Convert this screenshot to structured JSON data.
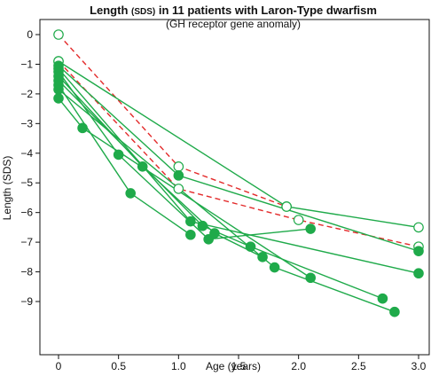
{
  "chart_data": {
    "type": "line",
    "title": {
      "prefix": "Length ",
      "sds": "(SDS)",
      "suffix": " in 11 patients with Laron-Type dwarfism"
    },
    "subtitle": "(GH receptor gene anomaly)",
    "xlabel": "Age (years)",
    "ylabel": "Length (SDS)",
    "xlim": [
      0,
      3.0
    ],
    "ylim": [
      -9.6,
      0.2
    ],
    "x_ticks": [
      {
        "value": 0,
        "label": "0"
      },
      {
        "value": 0.5,
        "label": "0.5"
      },
      {
        "value": 1.0,
        "label": "1.0"
      },
      {
        "value": 1.5,
        "label": "1.5"
      },
      {
        "value": 2.0,
        "label": "2.0"
      },
      {
        "value": 2.5,
        "label": "2.5"
      },
      {
        "value": 3.0,
        "label": "3.0"
      }
    ],
    "y_ticks": [
      {
        "value": 0,
        "label": "0"
      },
      {
        "value": -1,
        "label": "−1"
      },
      {
        "value": -2,
        "label": "−2"
      },
      {
        "value": -3,
        "label": "−3"
      },
      {
        "value": -4,
        "label": "−4"
      },
      {
        "value": -5,
        "label": "−5"
      },
      {
        "value": -6,
        "label": "−6"
      },
      {
        "value": -7,
        "label": "−7"
      },
      {
        "value": -8,
        "label": "−8"
      },
      {
        "value": -9,
        "label": "−9"
      }
    ],
    "grid": false,
    "colors": {
      "solid": "#1faa4a",
      "dashed": "#e32a2a",
      "hollow_fill": "#ffffff"
    },
    "series": [
      {
        "style": "dashed",
        "marker": "hollow",
        "points": [
          [
            0,
            0.0
          ],
          [
            1.0,
            -4.45
          ],
          [
            1.9,
            -5.8
          ]
        ]
      },
      {
        "style": "dashed",
        "marker": "hollow",
        "points": [
          [
            0,
            -0.9
          ],
          [
            1.0,
            -5.2
          ],
          [
            2.0,
            -6.25
          ],
          [
            3.0,
            -7.15
          ]
        ]
      },
      {
        "style": "solid",
        "marker": "hollow",
        "points": [
          [
            0,
            -0.9
          ],
          [
            1.9,
            -5.8
          ],
          [
            3.0,
            -6.5
          ]
        ]
      },
      {
        "style": "solid",
        "marker": "filled",
        "points": [
          [
            0,
            -1.05
          ],
          [
            1.0,
            -4.75
          ],
          [
            3.0,
            -7.3
          ]
        ]
      },
      {
        "style": "solid",
        "marker": "filled",
        "points": [
          [
            0,
            -1.15
          ],
          [
            1.1,
            -6.3
          ],
          [
            3.0,
            -8.05
          ]
        ]
      },
      {
        "style": "solid",
        "marker": "filled",
        "points": [
          [
            0,
            -1.25
          ],
          [
            0.5,
            -4.05
          ],
          [
            1.25,
            -6.9
          ],
          [
            2.1,
            -6.55
          ]
        ]
      },
      {
        "style": "solid",
        "marker": "filled",
        "points": [
          [
            0,
            -1.4
          ],
          [
            0.7,
            -4.45
          ],
          [
            1.3,
            -6.7
          ],
          [
            1.7,
            -7.5
          ]
        ]
      },
      {
        "style": "solid",
        "marker": "filled",
        "points": [
          [
            0,
            -1.55
          ],
          [
            1.2,
            -6.45
          ],
          [
            1.6,
            -7.15
          ],
          [
            2.7,
            -8.9
          ]
        ]
      },
      {
        "style": "solid",
        "marker": "filled",
        "points": [
          [
            0,
            -1.7
          ],
          [
            0.6,
            -5.35
          ],
          [
            1.1,
            -6.75
          ]
        ]
      },
      {
        "style": "solid",
        "marker": "filled",
        "points": [
          [
            0,
            -1.85
          ],
          [
            1.8,
            -7.85
          ],
          [
            2.8,
            -9.35
          ]
        ]
      },
      {
        "style": "solid",
        "marker": "filled",
        "points": [
          [
            0,
            -2.15
          ],
          [
            0.2,
            -3.15
          ],
          [
            2.1,
            -8.2
          ]
        ]
      }
    ]
  }
}
